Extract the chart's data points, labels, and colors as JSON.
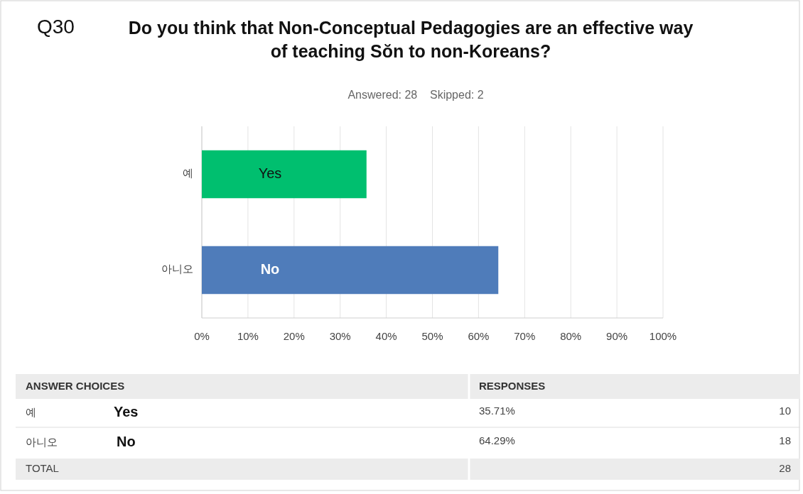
{
  "chart_data": {
    "type": "bar",
    "orientation": "horizontal",
    "title": "Do you think that Non-Conceptual Pedagogies are an effective way of teaching Sŏn to non-Koreans?",
    "subtitle": "Answered: 28    Skipped: 2",
    "categories": [
      "예",
      "아니오"
    ],
    "values": [
      35.71,
      64.29
    ],
    "colors": [
      "#00bf6f",
      "#4f7cba"
    ],
    "xlim": [
      0,
      100
    ],
    "xticks": [
      {
        "value": 0,
        "label": "0%"
      },
      {
        "value": 10,
        "label": "10%"
      },
      {
        "value": 20,
        "label": "20%"
      },
      {
        "value": 30,
        "label": "30%"
      },
      {
        "value": 40,
        "label": "40%"
      },
      {
        "value": 50,
        "label": "50%"
      },
      {
        "value": 60,
        "label": "60%"
      },
      {
        "value": 70,
        "label": "70%"
      },
      {
        "value": 80,
        "label": "80%"
      },
      {
        "value": 90,
        "label": "90%"
      },
      {
        "value": 100,
        "label": "100%"
      }
    ],
    "grid": "x",
    "annotations": [
      "Q30",
      "Yes",
      "No",
      "ANSWER CHOICES",
      "RESPONSES",
      "Yes",
      "No",
      "35.71%",
      "64.29%",
      "10",
      "18",
      "TOTAL",
      "28"
    ]
  }
}
